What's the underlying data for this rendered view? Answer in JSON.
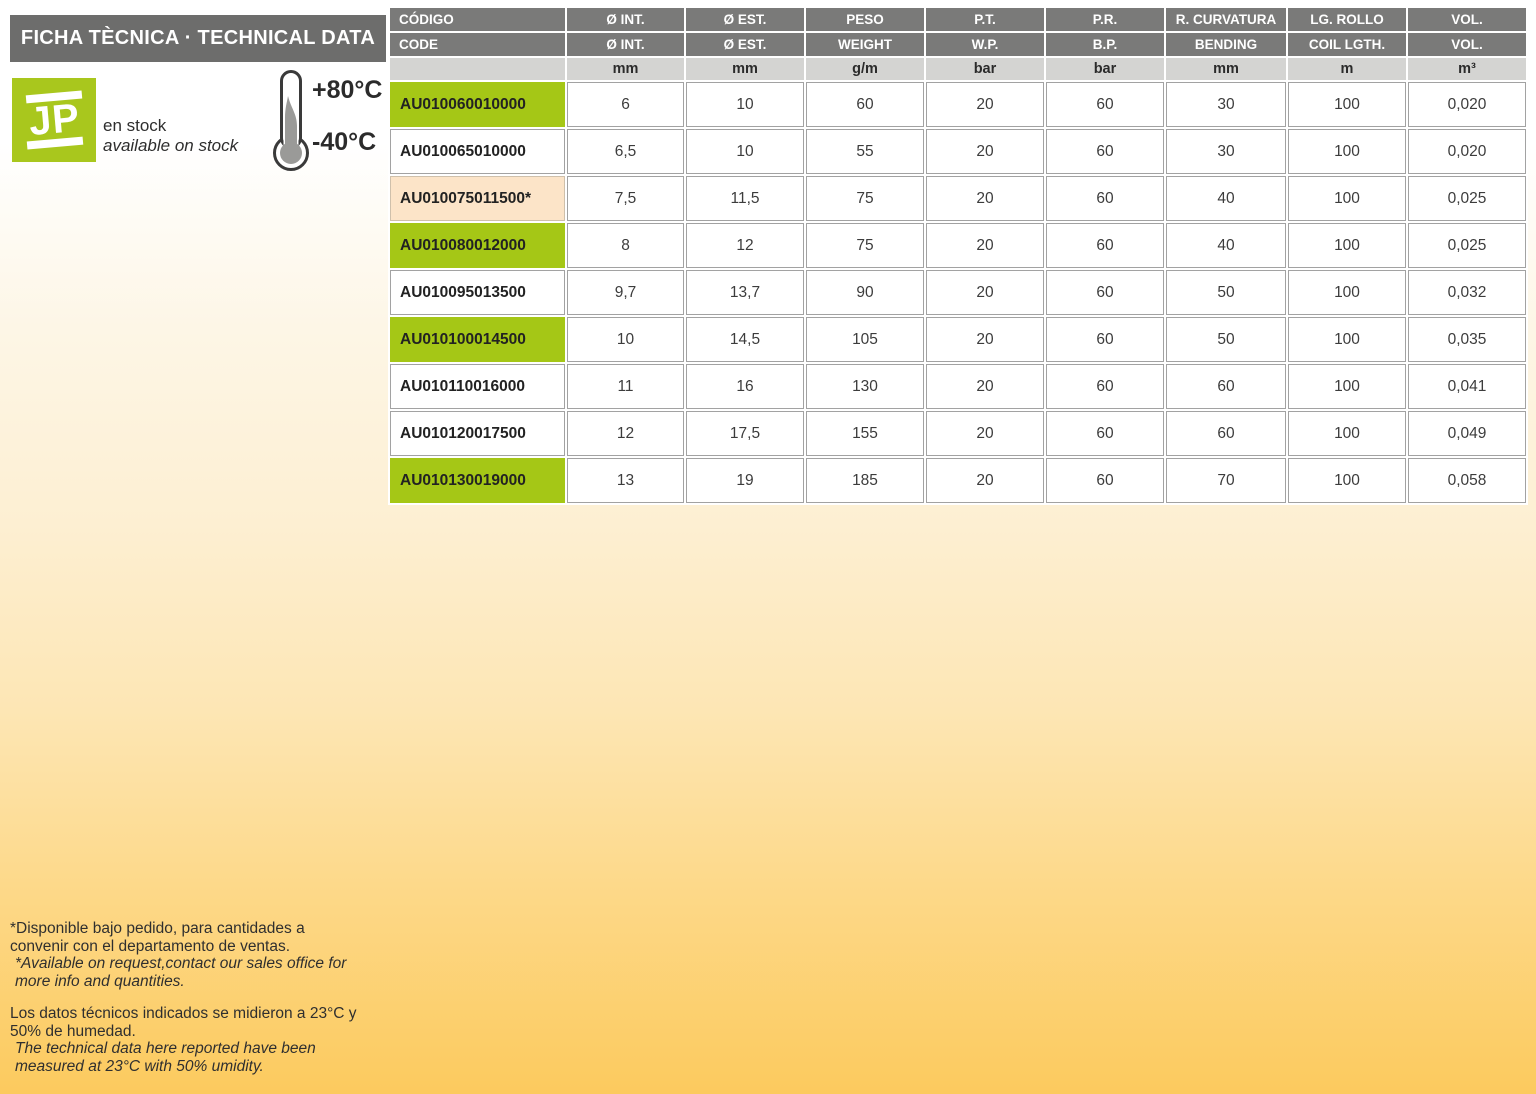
{
  "header": {
    "title": "FICHA TÈCNICA · TECHNICAL DATA",
    "logo_text": "JP",
    "stock_line_es": "en stock",
    "stock_line_en": "available on stock",
    "temp_max": "+80°C",
    "temp_min": "-40°C"
  },
  "colors": {
    "accent_green": "#a5c716",
    "highlight_peach": "#fce4c8",
    "header_gray": "#7a7a79",
    "title_gray": "#6d6d6c",
    "units_gray": "#d4d4d2",
    "background_bottom": "#fcca5e"
  },
  "table": {
    "columns": [
      {
        "es": "CÓDIGO",
        "en": "CODE",
        "unit": ""
      },
      {
        "es": "Ø INT.",
        "en": "Ø INT.",
        "unit": "mm"
      },
      {
        "es": "Ø EST.",
        "en": "Ø EST.",
        "unit": "mm"
      },
      {
        "es": "PESO",
        "en": "WEIGHT",
        "unit": "g/m"
      },
      {
        "es": "P.T.",
        "en": "W.P.",
        "unit": "bar"
      },
      {
        "es": "P.R.",
        "en": "B.P.",
        "unit": "bar"
      },
      {
        "es": "R. CURVATURA",
        "en": "BENDING",
        "unit": "mm"
      },
      {
        "es": "LG. ROLLO",
        "en": "COIL LGTH.",
        "unit": "m"
      },
      {
        "es": "VOL.",
        "en": "VOL.",
        "unit": "m³"
      }
    ],
    "rows": [
      {
        "code": "AU010060010000",
        "highlight": "green",
        "values": [
          "6",
          "10",
          "60",
          "20",
          "60",
          "30",
          "100",
          "0,020"
        ]
      },
      {
        "code": "AU010065010000",
        "highlight": "white",
        "values": [
          "6,5",
          "10",
          "55",
          "20",
          "60",
          "30",
          "100",
          "0,020"
        ]
      },
      {
        "code": "AU010075011500*",
        "highlight": "peach",
        "values": [
          "7,5",
          "11,5",
          "75",
          "20",
          "60",
          "40",
          "100",
          "0,025"
        ]
      },
      {
        "code": "AU010080012000",
        "highlight": "green",
        "values": [
          "8",
          "12",
          "75",
          "20",
          "60",
          "40",
          "100",
          "0,025"
        ]
      },
      {
        "code": "AU010095013500",
        "highlight": "white",
        "values": [
          "9,7",
          "13,7",
          "90",
          "20",
          "60",
          "50",
          "100",
          "0,032"
        ]
      },
      {
        "code": "AU010100014500",
        "highlight": "green",
        "values": [
          "10",
          "14,5",
          "105",
          "20",
          "60",
          "50",
          "100",
          "0,035"
        ]
      },
      {
        "code": "AU010110016000",
        "highlight": "white",
        "values": [
          "11",
          "16",
          "130",
          "20",
          "60",
          "60",
          "100",
          "0,041"
        ]
      },
      {
        "code": "AU010120017500",
        "highlight": "white",
        "values": [
          "12",
          "17,5",
          "155",
          "20",
          "60",
          "60",
          "100",
          "0,049"
        ]
      },
      {
        "code": "AU010130019000",
        "highlight": "green",
        "values": [
          "13",
          "19",
          "185",
          "20",
          "60",
          "70",
          "100",
          "0,058"
        ]
      }
    ]
  },
  "footnotes": {
    "note1_es": "*Disponible bajo pedido, para cantidades a convenir con el departamento de ventas.",
    "note1_en": "*Available on request,contact our sales office for more info and quantities.",
    "note2_es": "Los datos técnicos indicados se midieron a 23°C y 50% de humedad.",
    "note2_en": "The technical data here reported have been measured at 23°C with 50% umidity."
  }
}
